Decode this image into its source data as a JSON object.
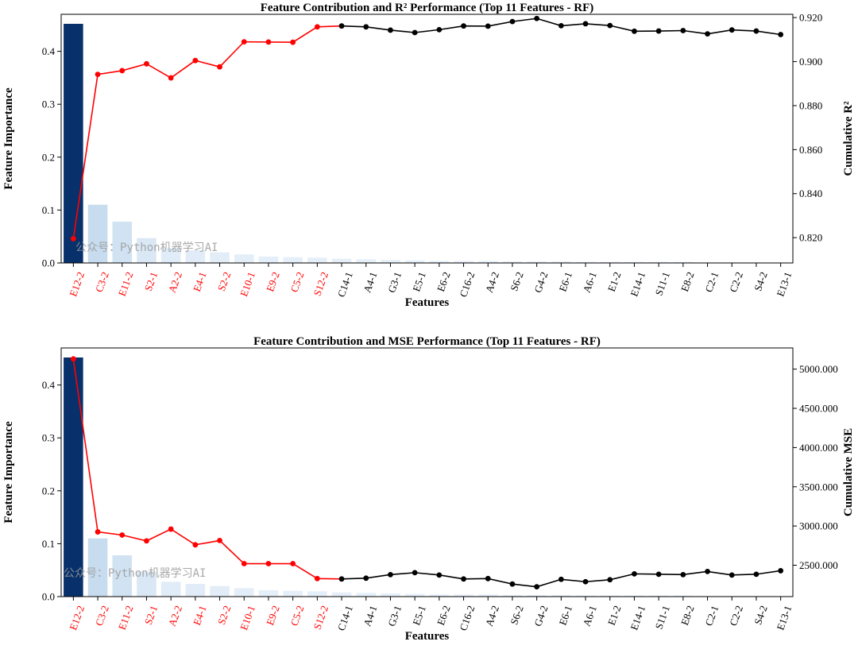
{
  "colors": {
    "bar_dark": "#08306b",
    "bar_light": "#c6dbef",
    "bar_pale": "#deebf7",
    "top_line": "#ff0000",
    "rest_line": "#000000",
    "top_label": "#ff0000",
    "rest_label": "#000000"
  },
  "watermark": "公众号：Python机器学习AI",
  "chart_data": [
    {
      "type": "bar",
      "title": "Feature Contribution and R² Performance (Top 11 Features - RF)",
      "xlabel": "Features",
      "ylabel": "Feature Importance",
      "y2label": "Cumulative R²",
      "ylim": [
        0,
        0.47
      ],
      "y_ticks": [
        "0.0",
        "0.1",
        "0.2",
        "0.3",
        "0.4"
      ],
      "y2lim": [
        0.8085,
        0.9215
      ],
      "y2_ticks": [
        "0.820",
        "0.840",
        "0.860",
        "0.880",
        "0.900",
        "0.920"
      ],
      "top_n": 11,
      "categories": [
        "E12-2",
        "C3-2",
        "E11-2",
        "S2-1",
        "A2-2",
        "E4-1",
        "S2-2",
        "E10-1",
        "E9-2",
        "C5-2",
        "S12-2",
        "C14-1",
        "A4-1",
        "G3-1",
        "E5-1",
        "E6-2",
        "C16-2",
        "A4-2",
        "S6-2",
        "G4-2",
        "E6-1",
        "A6-1",
        "E1-2",
        "E14-1",
        "S11-1",
        "E8-2",
        "C2-1",
        "C2-2",
        "S4-2",
        "E13-1"
      ],
      "values": [
        0.452,
        0.11,
        0.078,
        0.047,
        0.028,
        0.024,
        0.02,
        0.016,
        0.012,
        0.011,
        0.01,
        0.008,
        0.007,
        0.006,
        0.005,
        0.004,
        0.004,
        0.004,
        0.003,
        0.003,
        0.003,
        0.002,
        0.002,
        0.002,
        0.002,
        0.002,
        0.001,
        0.001,
        0.001,
        0.001
      ],
      "cumulative": [
        0.8195,
        0.8942,
        0.8959,
        0.899,
        0.8926,
        0.9005,
        0.8976,
        0.909,
        0.9089,
        0.9088,
        0.9158,
        0.9162,
        0.9158,
        0.9143,
        0.9132,
        0.9145,
        0.9162,
        0.9161,
        0.9182,
        0.9196,
        0.9163,
        0.9172,
        0.9164,
        0.9138,
        0.9139,
        0.9141,
        0.9126,
        0.9144,
        0.9139,
        0.9123
      ]
    },
    {
      "type": "bar",
      "title": "Feature Contribution and MSE Performance (Top 11 Features - RF)",
      "xlabel": "Features",
      "ylabel": "Feature Importance",
      "y2label": "Cumulative MSE",
      "ylim": [
        0,
        0.47
      ],
      "y_ticks": [
        "0.0",
        "0.1",
        "0.2",
        "0.3",
        "0.4"
      ],
      "y2lim": [
        2100,
        5270
      ],
      "y2_ticks": [
        "2500.000",
        "3000.000",
        "3500.000",
        "4000.000",
        "4500.000",
        "5000.000"
      ],
      "top_n": 11,
      "categories": [
        "E12-2",
        "C3-2",
        "E11-2",
        "S2-1",
        "A2-2",
        "E4-1",
        "S2-2",
        "E10-1",
        "E9-2",
        "C5-2",
        "S12-2",
        "C14-1",
        "A4-1",
        "G3-1",
        "E5-1",
        "E6-2",
        "C16-2",
        "A4-2",
        "S6-2",
        "G4-2",
        "E6-1",
        "A6-1",
        "E1-2",
        "E14-1",
        "S11-1",
        "E8-2",
        "C2-1",
        "C2-2",
        "S4-2",
        "E13-1"
      ],
      "values": [
        0.452,
        0.11,
        0.078,
        0.047,
        0.028,
        0.024,
        0.02,
        0.016,
        0.012,
        0.011,
        0.01,
        0.008,
        0.007,
        0.006,
        0.005,
        0.004,
        0.004,
        0.004,
        0.003,
        0.003,
        0.003,
        0.002,
        0.002,
        0.002,
        0.002,
        0.002,
        0.001,
        0.001,
        0.001,
        0.001
      ],
      "cumulative": [
        5130,
        2925,
        2885,
        2810,
        2960,
        2760,
        2815,
        2520,
        2520,
        2520,
        2330,
        2325,
        2335,
        2380,
        2405,
        2375,
        2325,
        2330,
        2260,
        2225,
        2320,
        2290,
        2315,
        2390,
        2385,
        2380,
        2420,
        2375,
        2385,
        2430
      ]
    }
  ]
}
